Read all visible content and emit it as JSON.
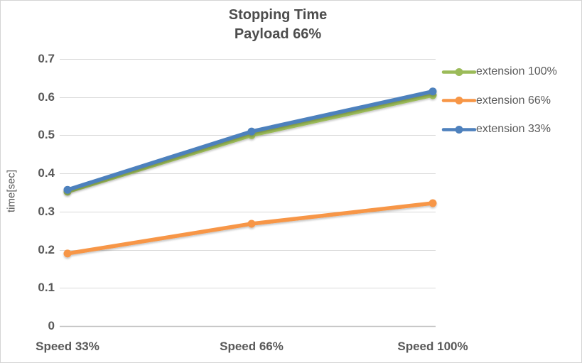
{
  "chart_data": {
    "type": "line",
    "title": "Stopping Time",
    "subtitle": "Payload 66%",
    "xlabel": "",
    "ylabel": "time[sec]",
    "categories": [
      "Speed 33%",
      "Speed 66%",
      "Speed 100%"
    ],
    "series": [
      {
        "name": "extension 100%",
        "color": "#9BBB59",
        "values": [
          0.352,
          0.5,
          0.605
        ]
      },
      {
        "name": "extension 66%",
        "color": "#F79646",
        "values": [
          0.19,
          0.268,
          0.322
        ]
      },
      {
        "name": "extension 33%",
        "color": "#4E81BD",
        "values": [
          0.357,
          0.51,
          0.615
        ]
      }
    ],
    "legend_order": [
      "extension 100%",
      "extension 66%",
      "extension 33%"
    ],
    "legend_position": "right",
    "ylim": [
      0,
      0.7
    ],
    "ytick_labels": [
      "0.7",
      "0.6",
      "0.5",
      "0.4",
      "0.3",
      "0.2",
      "0.1",
      "0"
    ],
    "grid": true,
    "colors": {
      "gridline": "#D9D9D9",
      "axis_line": "#C3C3C3",
      "tick_text": "#595959",
      "title_text": "#4D4D4D",
      "background": "#FFFFFF",
      "border": "#D4D4D4"
    }
  }
}
